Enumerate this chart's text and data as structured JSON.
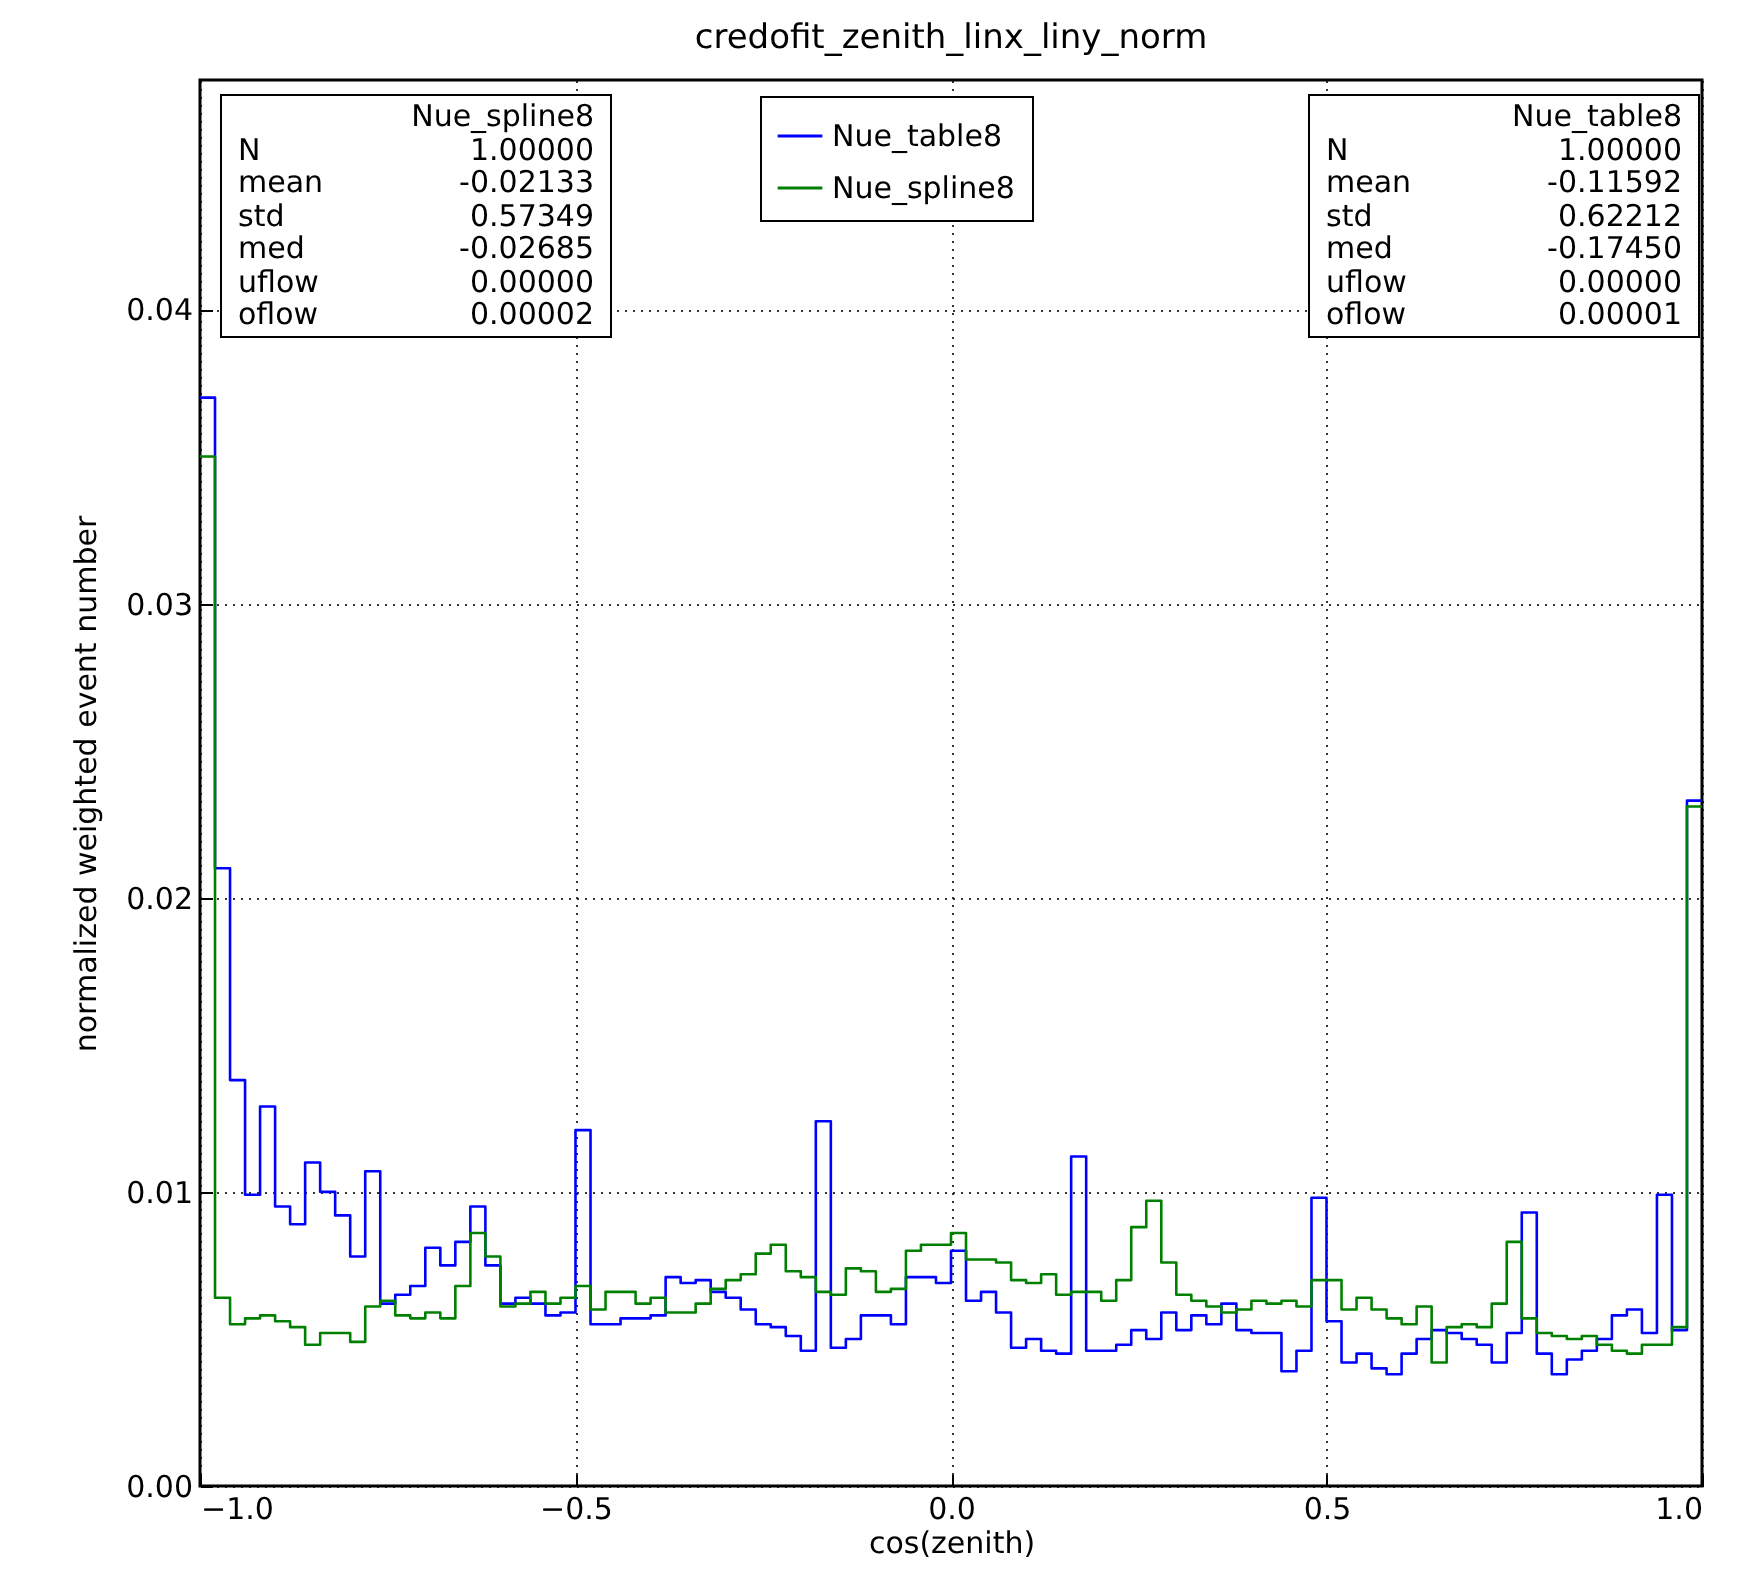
{
  "chart_data": {
    "type": "histogram",
    "title": "credofit_zenith_linx_liny_norm",
    "xlabel": "cos(zenith)",
    "ylabel": "normalized weighted event number",
    "bins": [
      -1,
      -0.98,
      -0.96,
      -0.94,
      -0.92,
      -0.9,
      -0.88,
      -0.86,
      -0.84,
      -0.82,
      -0.8,
      -0.78,
      -0.76,
      -0.74,
      -0.72,
      -0.7,
      -0.68,
      -0.66,
      -0.64,
      -0.62,
      -0.6,
      -0.58,
      -0.56,
      -0.54,
      -0.52,
      -0.5,
      -0.48,
      -0.46,
      -0.44,
      -0.42,
      -0.4,
      -0.38,
      -0.36,
      -0.34,
      -0.32,
      -0.3,
      -0.28,
      -0.26,
      -0.24,
      -0.22,
      -0.2,
      -0.18,
      -0.16,
      -0.14,
      -0.12,
      -0.1,
      -0.08,
      -0.06,
      -0.04,
      -0.02,
      0,
      0.02,
      0.04,
      0.06,
      0.08,
      0.1,
      0.12,
      0.14,
      0.16,
      0.18,
      0.2,
      0.22,
      0.24,
      0.26,
      0.28,
      0.3,
      0.32,
      0.34,
      0.36,
      0.38,
      0.4,
      0.42,
      0.44,
      0.46,
      0.48,
      0.5,
      0.52,
      0.54,
      0.56,
      0.58,
      0.6,
      0.62,
      0.64,
      0.66,
      0.68,
      0.7,
      0.72,
      0.74,
      0.76,
      0.78,
      0.8,
      0.82,
      0.84,
      0.86,
      0.88,
      0.9,
      0.92,
      0.94,
      0.96,
      0.98,
      1
    ],
    "series": [
      {
        "name": "Nue_table8",
        "color": "#0000ff",
        "values": [
          0.037,
          0.021,
          0.0138,
          0.0099,
          0.0129,
          0.0095,
          0.0089,
          0.011,
          0.01,
          0.0092,
          0.0078,
          0.0107,
          0.0062,
          0.0065,
          0.0068,
          0.0081,
          0.0075,
          0.0083,
          0.0095,
          0.0075,
          0.0062,
          0.0064,
          0.0062,
          0.0058,
          0.0059,
          0.0121,
          0.0055,
          0.0055,
          0.0057,
          0.0057,
          0.0058,
          0.0071,
          0.0069,
          0.007,
          0.0066,
          0.0064,
          0.006,
          0.0055,
          0.0054,
          0.0051,
          0.0046,
          0.0124,
          0.0047,
          0.005,
          0.0058,
          0.0058,
          0.0055,
          0.0071,
          0.0071,
          0.0069,
          0.008,
          0.0063,
          0.0066,
          0.0059,
          0.0047,
          0.005,
          0.0046,
          0.0045,
          0.0112,
          0.0046,
          0.0046,
          0.0048,
          0.0053,
          0.005,
          0.0059,
          0.0053,
          0.0058,
          0.0055,
          0.0062,
          0.0053,
          0.0052,
          0.0052,
          0.0039,
          0.0046,
          0.0098,
          0.0056,
          0.0042,
          0.0045,
          0.004,
          0.0038,
          0.0045,
          0.005,
          0.0053,
          0.0052,
          0.005,
          0.0048,
          0.0042,
          0.0052,
          0.0093,
          0.0045,
          0.0038,
          0.0043,
          0.0046,
          0.005,
          0.0058,
          0.006,
          0.0052,
          0.0099,
          0.0053,
          0.0233
        ]
      },
      {
        "name": "Nue_spline8",
        "color": "#008000",
        "values": [
          0.035,
          0.0064,
          0.0055,
          0.0057,
          0.0058,
          0.0056,
          0.0054,
          0.0048,
          0.0052,
          0.0052,
          0.0049,
          0.0061,
          0.0063,
          0.0058,
          0.0057,
          0.0059,
          0.0057,
          0.0068,
          0.0086,
          0.0078,
          0.0061,
          0.0062,
          0.0066,
          0.0062,
          0.0064,
          0.0068,
          0.006,
          0.0066,
          0.0066,
          0.0062,
          0.0064,
          0.0059,
          0.0059,
          0.0062,
          0.0067,
          0.007,
          0.0072,
          0.0079,
          0.0082,
          0.0073,
          0.0071,
          0.0066,
          0.0065,
          0.0074,
          0.0073,
          0.0066,
          0.0067,
          0.008,
          0.0082,
          0.0082,
          0.0086,
          0.0077,
          0.0077,
          0.0076,
          0.007,
          0.0069,
          0.0072,
          0.0065,
          0.0066,
          0.0066,
          0.0063,
          0.007,
          0.0088,
          0.0097,
          0.0076,
          0.0065,
          0.0063,
          0.0061,
          0.0059,
          0.006,
          0.0063,
          0.0062,
          0.0063,
          0.0061,
          0.007,
          0.007,
          0.006,
          0.0064,
          0.006,
          0.0057,
          0.0055,
          0.0061,
          0.0042,
          0.0054,
          0.0055,
          0.0054,
          0.0062,
          0.0083,
          0.0057,
          0.0052,
          0.0051,
          0.005,
          0.0051,
          0.0048,
          0.0046,
          0.0045,
          0.0048,
          0.0048,
          0.0054,
          0.0231
        ]
      }
    ],
    "xlim": [
      -1,
      1
    ],
    "xticks": [
      {
        "value": -1,
        "label": "−1.0"
      },
      {
        "value": -0.5,
        "label": "−0.5"
      },
      {
        "value": 0,
        "label": "0.0"
      },
      {
        "value": 0.5,
        "label": "0.5"
      },
      {
        "value": 1,
        "label": "1.0"
      }
    ],
    "ylim": [
      0,
      0.0478
    ],
    "yticks": [
      {
        "value": 0,
        "label": "0.00"
      },
      {
        "value": 0.01,
        "label": "0.01"
      },
      {
        "value": 0.02,
        "label": "0.02"
      },
      {
        "value": 0.03,
        "label": "0.03"
      },
      {
        "value": 0.04,
        "label": "0.04"
      }
    ],
    "grid": true,
    "legend": "top",
    "annotations": [
      "Nue_spline8",
      "N 1.00000",
      "mean -0.02133",
      "std 0.57349",
      "med -0.02685",
      "uflow 0.00000",
      "oflow 0.00002",
      "Nue_table8",
      "N 1.00000",
      "mean -0.11592",
      "std 0.62212",
      "med -0.17450",
      "uflow 0.00000",
      "oflow 0.00001"
    ]
  }
}
